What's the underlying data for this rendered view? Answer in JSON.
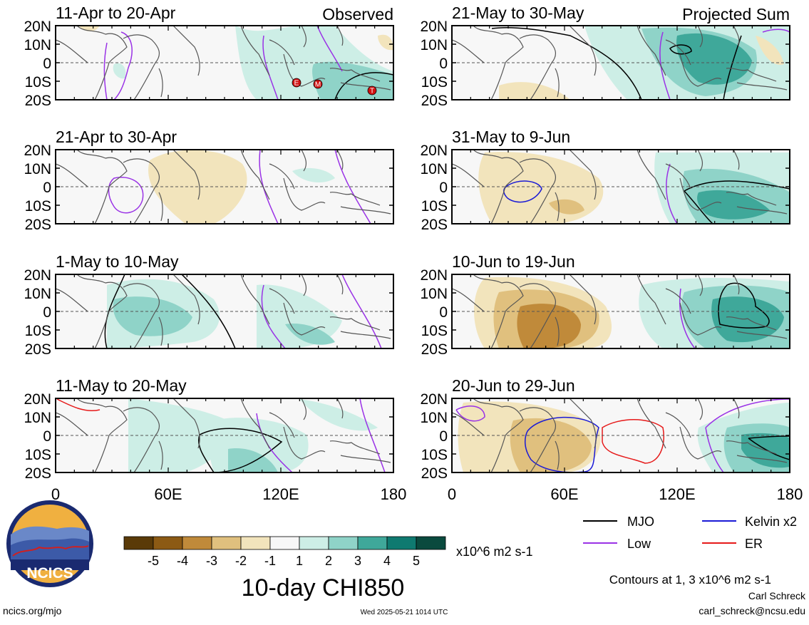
{
  "figure": {
    "title": "10-day CHI850",
    "units": "x10^6 m2 s-1",
    "contour_note": "Contours at 1, 3 x10^6 m2 s-1",
    "author": "Carl Schreck",
    "email": "carl_schreck@ncsu.edu",
    "url": "ncics.org/mjo",
    "timestamp": "Wed 2025-05-21 1014 UTC",
    "logo_text": "NCICS"
  },
  "columns": {
    "left_label": "Observed",
    "right_label": "Projected Sum"
  },
  "panels_left": [
    {
      "title": "11-Apr to 20-Apr"
    },
    {
      "title": "21-Apr to 30-Apr"
    },
    {
      "title": "1-May to 10-May"
    },
    {
      "title": "11-May to 20-May"
    }
  ],
  "panels_right": [
    {
      "title": "21-May to 30-May"
    },
    {
      "title": "31-May to 9-Jun"
    },
    {
      "title": "10-Jun to 19-Jun"
    },
    {
      "title": "20-Jun to 29-Jun"
    }
  ],
  "axes": {
    "lat_ticks": [
      "20N",
      "10N",
      "0",
      "10S",
      "20S"
    ],
    "lon_ticks": [
      "0",
      "60E",
      "120E",
      "180"
    ]
  },
  "colorbar": {
    "ticks": [
      "-5",
      "-4",
      "-3",
      "-2",
      "-1",
      "1",
      "2",
      "3",
      "4",
      "5"
    ],
    "colors": [
      "#5a3a08",
      "#8c5a14",
      "#c08a3a",
      "#e0c07e",
      "#f2e4bc",
      "#f7f7f7",
      "#cdeee6",
      "#8fd3c8",
      "#3fa89a",
      "#0f7a70",
      "#0a4a3e"
    ]
  },
  "legend": [
    {
      "label": "MJO",
      "color": "#000000"
    },
    {
      "label": "Kelvin x2",
      "color": "#1a1ad6"
    },
    {
      "label": "Low",
      "color": "#9a32e6"
    },
    {
      "label": "ER",
      "color": "#e61a1a"
    }
  ],
  "storm_markers": [
    "E",
    "M",
    "T"
  ]
}
